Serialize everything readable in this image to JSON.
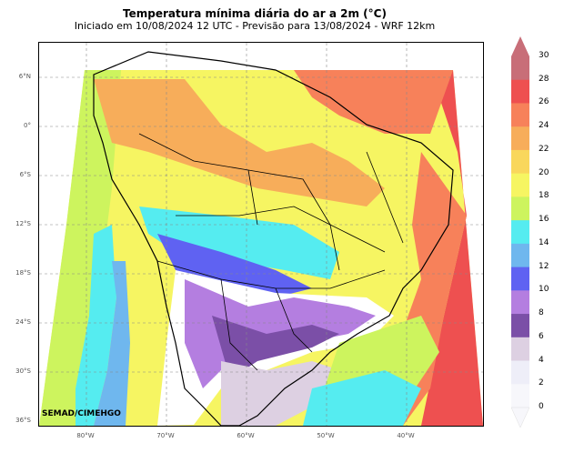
{
  "header": {
    "title": "Temperatura mínima diária do ar a 2m (°C)",
    "subtitle": "Iniciado em 10/08/2024 12 UTC - Previsão para 13/08/2024 - WRF 12km"
  },
  "map": {
    "credit": "SEMAD/CIMEHGO",
    "lat_labels": [
      "6°N",
      "0°",
      "6°S",
      "12°S",
      "18°S",
      "24°S",
      "30°S",
      "36°S"
    ],
    "lon_labels": [
      "80°W",
      "70°W",
      "60°W",
      "50°W",
      "40°W"
    ]
  },
  "colorbar": {
    "ticks": [
      "30",
      "28",
      "26",
      "24",
      "22",
      "20",
      "18",
      "16",
      "14",
      "12",
      "10",
      "8",
      "6",
      "4",
      "2",
      "0"
    ],
    "colors": [
      "#c86e78",
      "#ee5050",
      "#f7815a",
      "#f7ad5a",
      "#f9d75c",
      "#f6f562",
      "#cdf45e",
      "#55ecf0",
      "#6fb7ee",
      "#5f62f2",
      "#b47ee0",
      "#7b4fa7",
      "#ddd0e2",
      "#eeeef8",
      "#f7f7fb"
    ]
  }
}
